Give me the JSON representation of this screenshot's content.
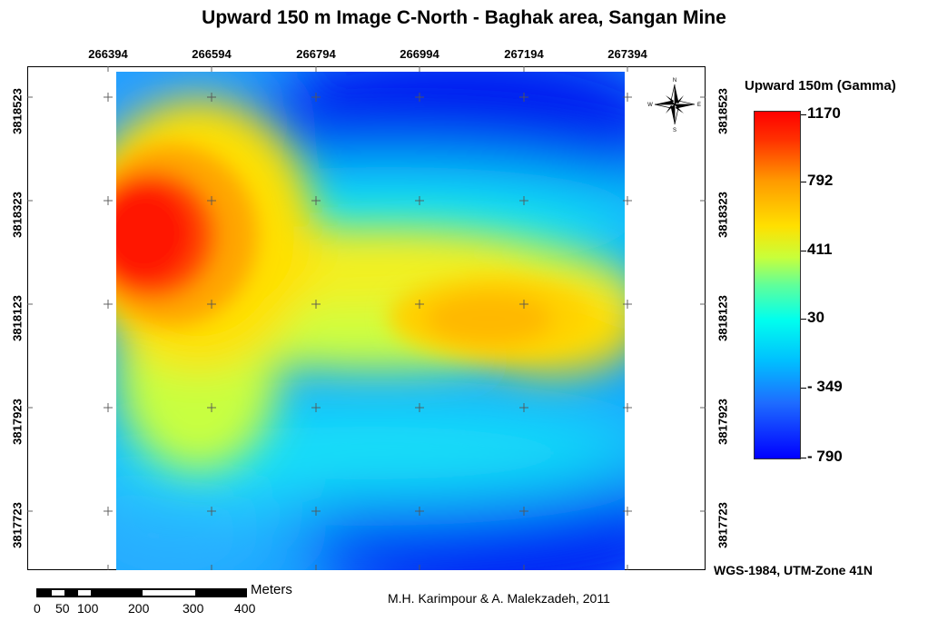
{
  "title": "Upward 150 m Image C-North - Baghak area, Sangan Mine",
  "x_ticks": [
    "266394",
    "266594",
    "266794",
    "266994",
    "267194",
    "267394"
  ],
  "y_ticks": [
    "3818523",
    "3818323",
    "3818123",
    "3817923",
    "3817723"
  ],
  "legend": {
    "title": "Upward 150m (Gamma)",
    "values": [
      "1170",
      "792",
      "411",
      "30",
      "- 349",
      "- 790"
    ],
    "colors": [
      "#ff0000",
      "#ffb000",
      "#e0ff30",
      "#00ffe0",
      "#2070ff",
      "#0000ff"
    ]
  },
  "crs": "WGS-1984, UTM-Zone 41N",
  "credit": "M.H. Karimpour & A. Malekzadeh, 2011",
  "scale": {
    "unit": "Meters",
    "labels": [
      "0",
      "50",
      "100",
      "200",
      "300",
      "400"
    ]
  },
  "north_arrow": {
    "n": "N",
    "s": "S",
    "e": "E",
    "w": "W"
  },
  "icons": {
    "north_arrow": "compass-rose-icon",
    "grid_marker": "crosshair-icon"
  }
}
